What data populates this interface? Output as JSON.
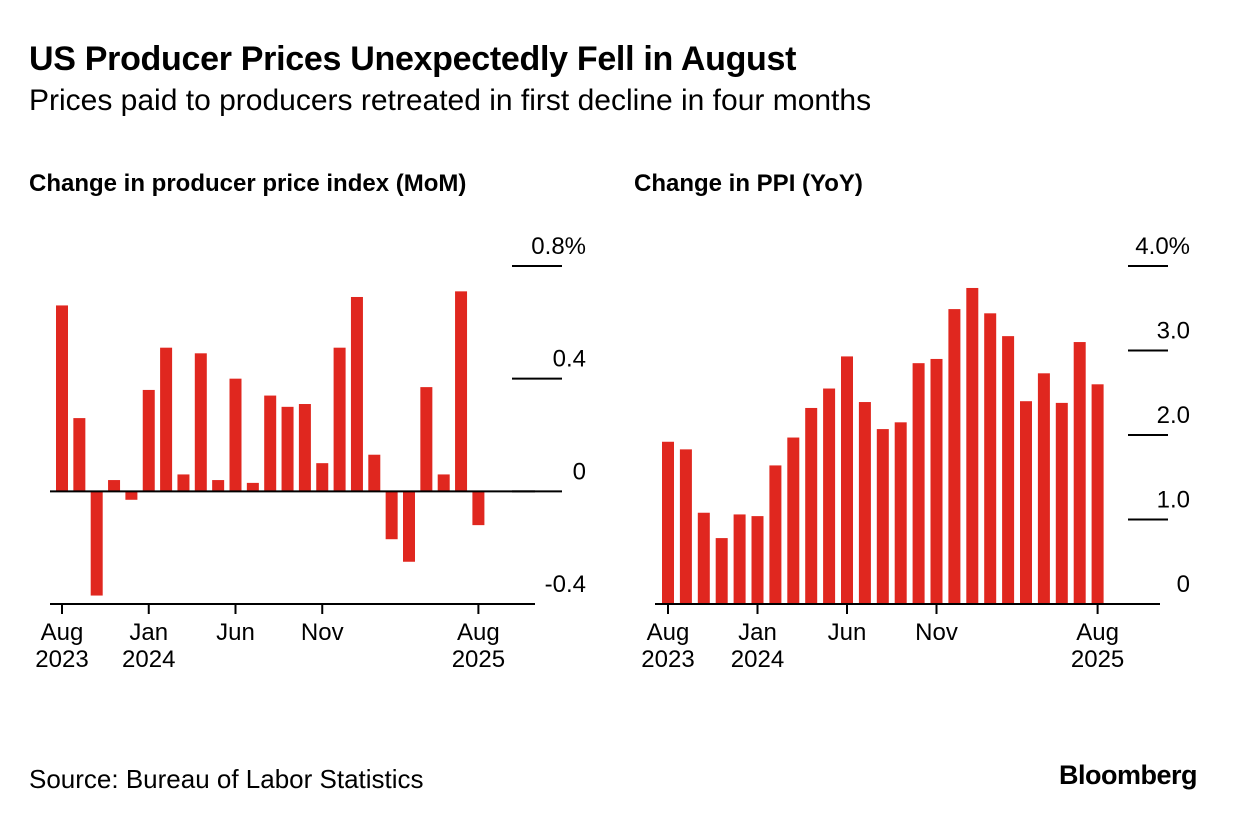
{
  "header": {
    "title": "US Producer Prices Unexpectedly Fell in August",
    "subtitle": "Prices paid to producers retreated in first decline in four months"
  },
  "footer": {
    "source": "Source: Bureau of Labor Statistics",
    "brand": "Bloomberg"
  },
  "colors": {
    "bar": "#e0271f",
    "axis": "#000000",
    "background": "#ffffff"
  },
  "chart_data": [
    {
      "type": "bar",
      "title": "Change in producer price index (MoM)",
      "ylim": [
        -0.4,
        0.8
      ],
      "y_ticks": [
        {
          "value": 0.8,
          "label": "0.8%"
        },
        {
          "value": 0.4,
          "label": "0.4"
        },
        {
          "value": 0,
          "label": "0"
        },
        {
          "value": -0.4,
          "label": "-0.4"
        }
      ],
      "x_ticks": [
        {
          "index": 0,
          "label": "Aug",
          "sublabel": "2023"
        },
        {
          "index": 5,
          "label": "Jan",
          "sublabel": "2024"
        },
        {
          "index": 10,
          "label": "Jun",
          "sublabel": ""
        },
        {
          "index": 15,
          "label": "Nov",
          "sublabel": ""
        },
        {
          "index": 24,
          "label": "Aug",
          "sublabel": "2025"
        }
      ],
      "categories": [
        "Aug 2023",
        "Sep 2023",
        "Oct 2023",
        "Nov 2023",
        "Dec 2023",
        "Jan 2024",
        "Feb 2024",
        "Mar 2024",
        "Apr 2024",
        "May 2024",
        "Jun 2024",
        "Jul 2024",
        "Aug 2024",
        "Sep 2024",
        "Oct 2024",
        "Nov 2024",
        "Dec 2024",
        "Jan 2025",
        "Feb 2025",
        "Mar 2025",
        "Apr 2025",
        "May 2025",
        "Jun 2025",
        "Jul 2025",
        "Aug 2025"
      ],
      "values": [
        0.66,
        0.26,
        -0.37,
        0.04,
        -0.03,
        0.36,
        0.51,
        0.06,
        0.49,
        0.04,
        0.4,
        0.03,
        0.34,
        0.3,
        0.31,
        0.1,
        0.51,
        0.69,
        0.13,
        -0.17,
        -0.25,
        0.37,
        0.06,
        0.71,
        -0.12
      ]
    },
    {
      "type": "bar",
      "title": "Change in PPI (YoY)",
      "ylim": [
        0,
        4.0
      ],
      "y_ticks": [
        {
          "value": 4.0,
          "label": "4.0%"
        },
        {
          "value": 3.0,
          "label": "3.0"
        },
        {
          "value": 2.0,
          "label": "2.0"
        },
        {
          "value": 1.0,
          "label": "1.0"
        },
        {
          "value": 0,
          "label": "0"
        }
      ],
      "x_ticks": [
        {
          "index": 0,
          "label": "Aug",
          "sublabel": "2023"
        },
        {
          "index": 5,
          "label": "Jan",
          "sublabel": "2024"
        },
        {
          "index": 10,
          "label": "Jun",
          "sublabel": ""
        },
        {
          "index": 15,
          "label": "Nov",
          "sublabel": ""
        },
        {
          "index": 24,
          "label": "Aug",
          "sublabel": "2025"
        }
      ],
      "categories": [
        "Aug 2023",
        "Sep 2023",
        "Oct 2023",
        "Nov 2023",
        "Dec 2023",
        "Jan 2024",
        "Feb 2024",
        "Mar 2024",
        "Apr 2024",
        "May 2024",
        "Jun 2024",
        "Jul 2024",
        "Aug 2024",
        "Sep 2024",
        "Oct 2024",
        "Nov 2024",
        "Dec 2024",
        "Jan 2025",
        "Feb 2025",
        "Mar 2025",
        "Apr 2025",
        "May 2025",
        "Jun 2025",
        "Jul 2025",
        "Aug 2025"
      ],
      "values": [
        1.92,
        1.83,
        1.08,
        0.78,
        1.06,
        1.04,
        1.64,
        1.97,
        2.32,
        2.55,
        2.93,
        2.39,
        2.07,
        2.15,
        2.85,
        2.9,
        3.49,
        3.74,
        3.44,
        3.17,
        2.4,
        2.73,
        2.38,
        3.1,
        2.6
      ]
    }
  ]
}
